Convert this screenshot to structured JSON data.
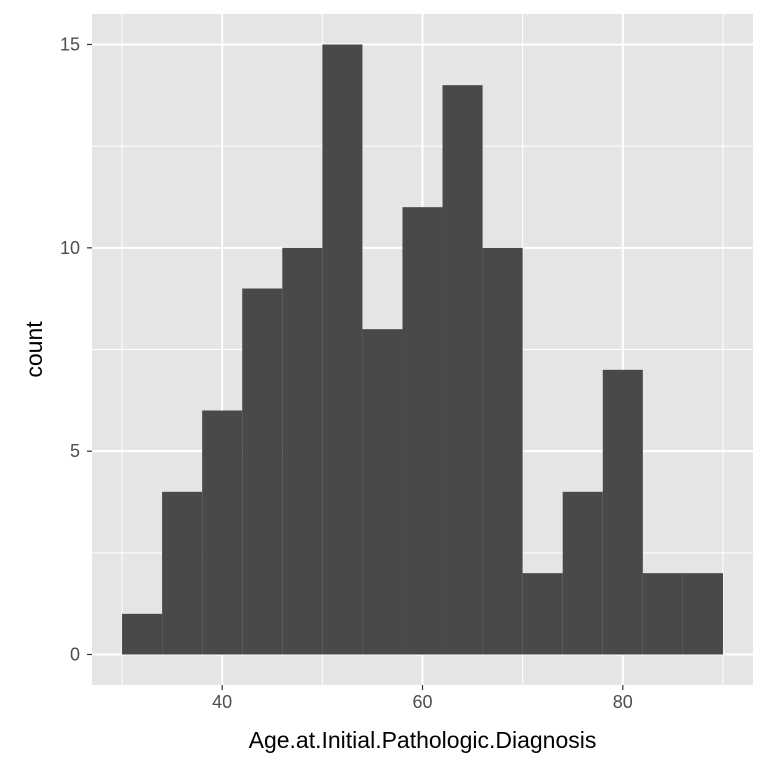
{
  "chart_data": {
    "type": "bar",
    "subtype": "histogram",
    "xlabel": "Age.at.Initial.Pathologic.Diagnosis",
    "ylabel": "count",
    "xlim": [
      27,
      93
    ],
    "ylim": [
      -0.75,
      15.75
    ],
    "x_major_ticks": [
      40,
      60,
      80
    ],
    "x_minor_ticks": [
      30,
      50,
      70,
      90
    ],
    "y_major_ticks": [
      0,
      5,
      10,
      15
    ],
    "y_minor_ticks": [
      2.5,
      7.5,
      12.5
    ],
    "bins": [
      {
        "x0": 30,
        "x1": 34,
        "count": 1
      },
      {
        "x0": 34,
        "x1": 38,
        "count": 4
      },
      {
        "x0": 38,
        "x1": 42,
        "count": 6
      },
      {
        "x0": 42,
        "x1": 46,
        "count": 9
      },
      {
        "x0": 46,
        "x1": 50,
        "count": 10
      },
      {
        "x0": 50,
        "x1": 54,
        "count": 15
      },
      {
        "x0": 54,
        "x1": 58,
        "count": 8
      },
      {
        "x0": 58,
        "x1": 62,
        "count": 11
      },
      {
        "x0": 62,
        "x1": 66,
        "count": 14
      },
      {
        "x0": 66,
        "x1": 70,
        "count": 10
      },
      {
        "x0": 70,
        "x1": 74,
        "count": 2
      },
      {
        "x0": 74,
        "x1": 78,
        "count": 4
      },
      {
        "x0": 78,
        "x1": 82,
        "count": 7
      },
      {
        "x0": 82,
        "x1": 86,
        "count": 2
      },
      {
        "x0": 86,
        "x1": 90,
        "count": 2
      }
    ],
    "grid": true,
    "legend": "none",
    "colors": {
      "panel_background": "#e5e5e5",
      "grid_line": "#ffffff",
      "bar_fill": "#494949",
      "tick_mark": "#333333",
      "tick_label": "#4d4d4d",
      "axis_title": "#000000"
    }
  }
}
